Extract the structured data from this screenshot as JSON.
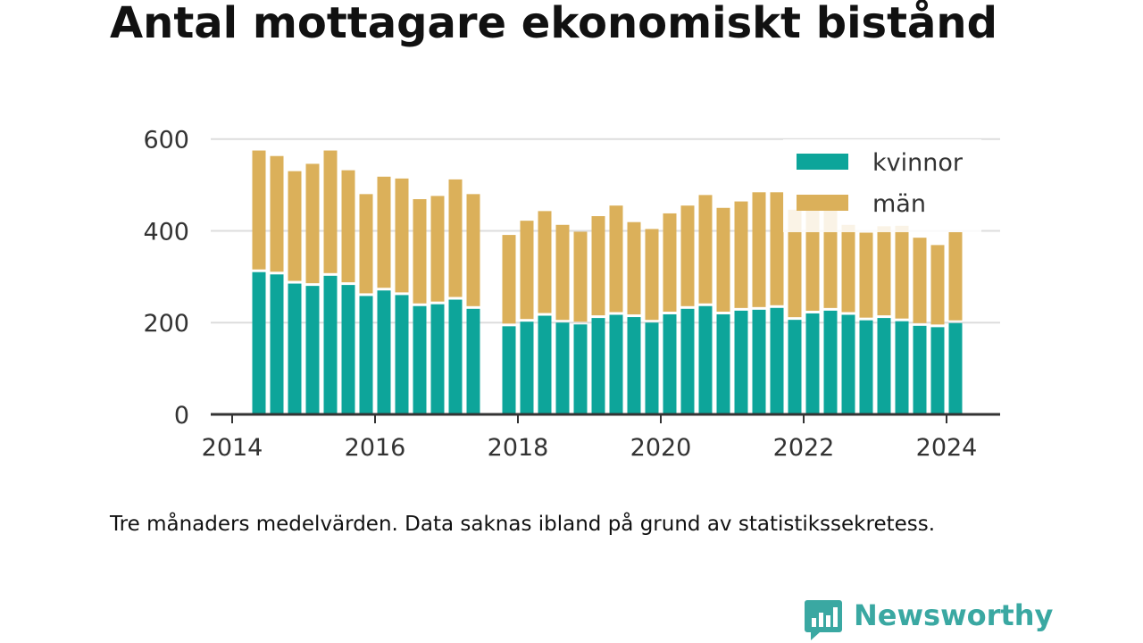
{
  "title": "Antal mottagare ekonomiskt bistånd",
  "note": "Tre månaders medelvärden. Data saknas ibland på grund av statistikssekretess.",
  "logo": {
    "text": "Newsworthy",
    "icon": "bar-chart-speech-bubble-icon"
  },
  "colors": {
    "kvinnor": "#0da59a",
    "man": "#dbb05a",
    "grid": "#dddddd",
    "axis": "#333333",
    "text": "#333333",
    "logo": "#3aa8a2"
  },
  "chart_data": {
    "type": "bar",
    "stacked": true,
    "x": [
      2014.375,
      2014.625,
      2014.875,
      2015.125,
      2015.375,
      2015.625,
      2015.875,
      2016.125,
      2016.375,
      2016.625,
      2016.875,
      2017.125,
      2017.375,
      2017.875,
      2018.125,
      2018.375,
      2018.625,
      2018.875,
      2019.125,
      2019.375,
      2019.625,
      2019.875,
      2020.125,
      2020.375,
      2020.625,
      2020.875,
      2021.125,
      2021.375,
      2021.625,
      2021.875,
      2022.125,
      2022.375,
      2022.625,
      2022.875,
      2023.125,
      2023.375,
      2023.625,
      2023.875,
      2024.125
    ],
    "series": [
      {
        "name": "kvinnor",
        "values": [
          310,
          305,
          285,
          280,
          302,
          282,
          258,
          270,
          260,
          236,
          240,
          250,
          230,
          192,
          202,
          215,
          200,
          196,
          210,
          217,
          212,
          200,
          218,
          230,
          236,
          218,
          226,
          228,
          232,
          206,
          220,
          226,
          217,
          205,
          210,
          203,
          193,
          190,
          199
        ]
      },
      {
        "name": "män",
        "values": [
          265,
          258,
          245,
          266,
          273,
          250,
          222,
          248,
          254,
          233,
          236,
          262,
          250,
          199,
          220,
          228,
          213,
          202,
          222,
          238,
          207,
          204,
          220,
          225,
          242,
          232,
          238,
          256,
          252,
          240,
          232,
          228,
          196,
          191,
          200,
          208,
          192,
          179,
          198
        ]
      }
    ],
    "xlim": [
      2013.7,
      2024.75
    ],
    "ylim": [
      0,
      650
    ],
    "xticks": [
      "2014",
      "2016",
      "2018",
      "2020",
      "2022",
      "2024"
    ],
    "xtick_values": [
      2014,
      2016,
      2018,
      2020,
      2022,
      2024
    ],
    "yticks": [
      "0",
      "200",
      "400",
      "600"
    ],
    "ytick_values": [
      0,
      200,
      400,
      600
    ],
    "grid": true,
    "legend": {
      "placement": "top-right",
      "entries": [
        "kvinnor",
        "män"
      ]
    }
  }
}
